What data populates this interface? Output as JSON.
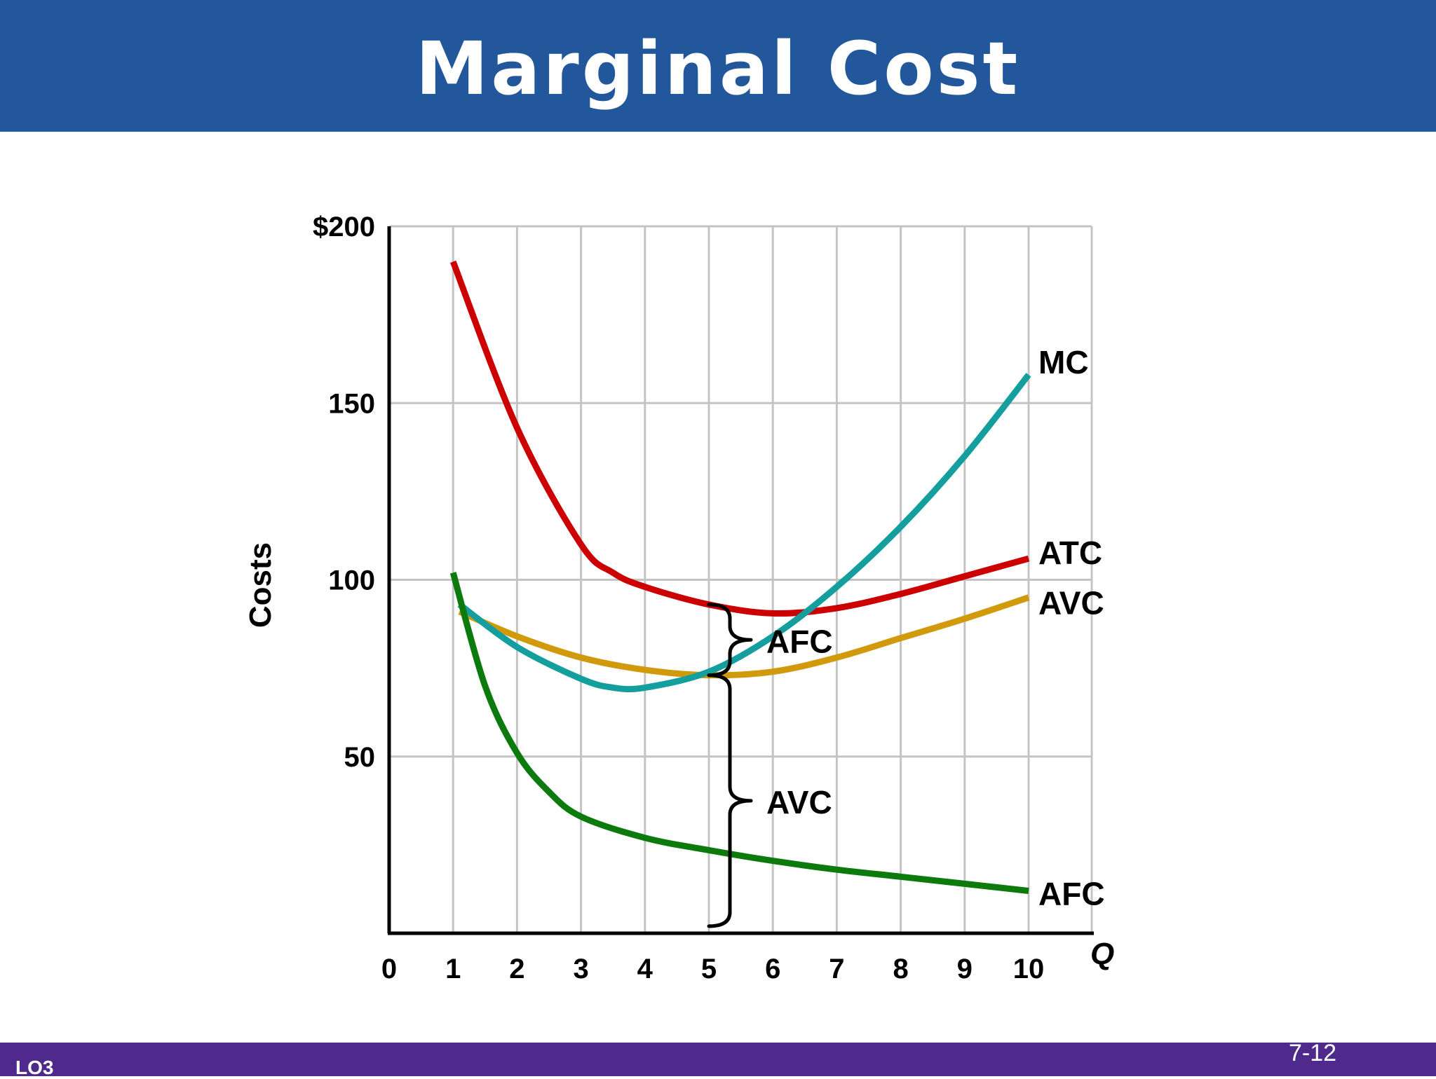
{
  "slide": {
    "title": "Marginal Cost",
    "footer_left": "LO3",
    "page_number": "7-12",
    "header_color": "#23579c",
    "footer_color": "#4f2a8c"
  },
  "chart_data": {
    "type": "line",
    "title": "",
    "xlabel": "Q",
    "ylabel": "Costs",
    "xlim": [
      0,
      10
    ],
    "ylim": [
      0,
      200
    ],
    "x_ticks": [
      "0",
      "1",
      "2",
      "3",
      "4",
      "5",
      "6",
      "7",
      "8",
      "9",
      "10"
    ],
    "y_ticks": [
      {
        "value": 50,
        "label": "50"
      },
      {
        "value": 100,
        "label": "100"
      },
      {
        "value": 150,
        "label": "150"
      },
      {
        "value": 200,
        "label": "$200"
      }
    ],
    "grid": true,
    "series": [
      {
        "name": "ATC",
        "color": "#cc0000",
        "x": [
          1,
          2,
          3,
          3.5,
          4,
          5,
          6,
          7,
          8,
          9,
          10
        ],
        "y": [
          190,
          143,
          110,
          102,
          98,
          93,
          90.5,
          92,
          96,
          101,
          106
        ]
      },
      {
        "name": "AVC",
        "color": "#d19a0c",
        "x": [
          1.1,
          2,
          3,
          4,
          5,
          6,
          7,
          8,
          9,
          10
        ],
        "y": [
          91,
          84,
          78,
          74.5,
          73,
          74,
          78,
          83.5,
          89,
          95
        ]
      },
      {
        "name": "MC",
        "color": "#159e9e",
        "x": [
          1.1,
          2,
          3,
          3.5,
          4,
          5,
          6,
          7,
          8,
          9,
          10
        ],
        "y": [
          93,
          81,
          72,
          69.5,
          69.5,
          74,
          84,
          98,
          115,
          135,
          158
        ]
      },
      {
        "name": "AFC",
        "color": "#0d7a0d",
        "x": [
          1,
          1.5,
          2,
          2.5,
          3,
          4,
          5,
          6,
          7,
          8,
          9,
          10
        ],
        "y": [
          102,
          70,
          51,
          40,
          33,
          27,
          23.5,
          20.5,
          18,
          16,
          14,
          12
        ]
      }
    ],
    "annotations": [
      {
        "text": "AFC",
        "note": "brace at Q=5 spanning the gap between ATC and AVC",
        "x": 5,
        "y_from": 73,
        "y_to": 93
      },
      {
        "text": "AVC",
        "note": "brace at Q=5 spanning from 0 up to AVC",
        "x": 5,
        "y_from": 2,
        "y_to": 73
      }
    ]
  }
}
